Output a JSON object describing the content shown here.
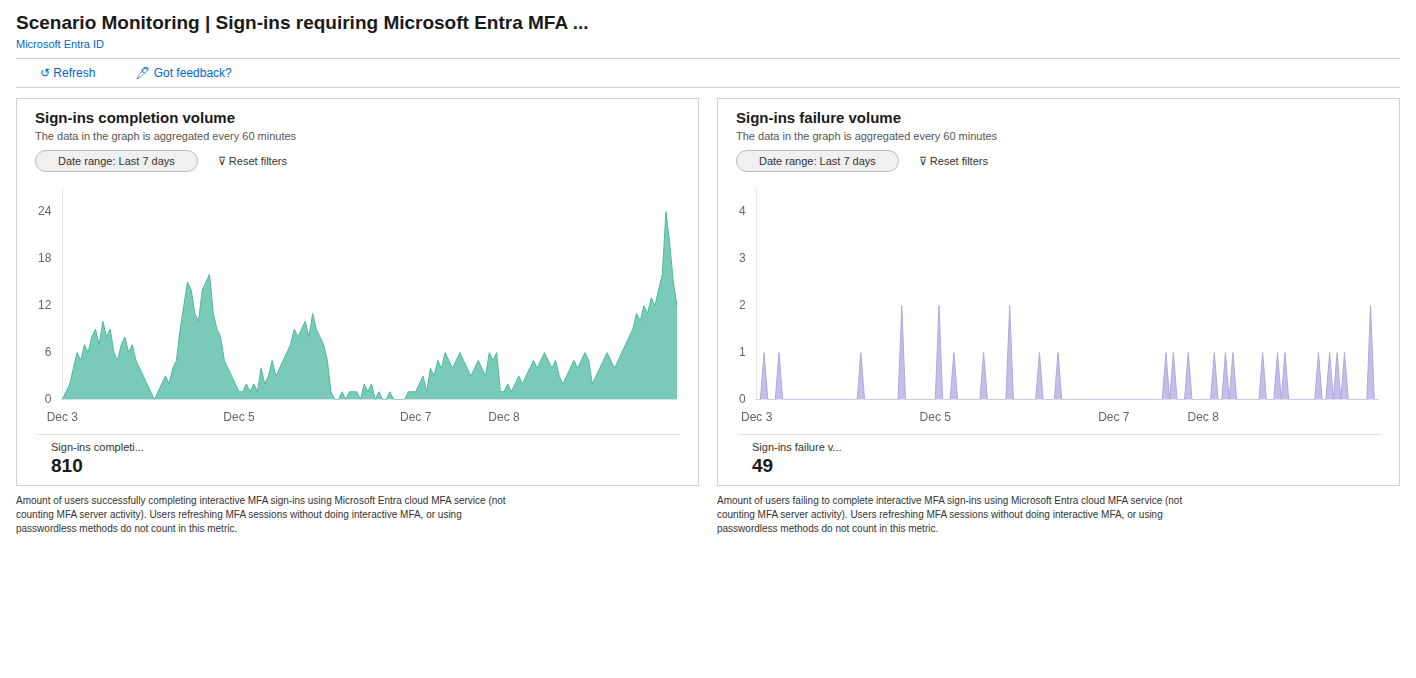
{
  "title": "Scenario Monitoring | Sign-ins requiring Microsoft Entra MFA  ...",
  "subtitle": "Microsoft Entra ID",
  "annotations": [
    "↺  Refresh",
    "🖊  Got feedback?"
  ],
  "chart_data": [
    {
      "type": "area",
      "title": "Sign-ins completion volume",
      "subtitle": "The data in the graph is aggregated every 60 minutes",
      "annotations": [
        "Date range: Last 7 days",
        "⊽  Reset filters",
        "Sign-ins completi...",
        "810",
        "Amount of users successfully completing interactive MFA sign-ins using Microsoft Entra cloud MFA service (not",
        "counting MFA server activity). Users refreshing MFA sessions without doing interactive MFA, or using",
        "passwordless methods do not count in this metric."
      ],
      "color": "#4db8a0",
      "ylim": [
        0,
        27
      ],
      "yticks": [
        0,
        6,
        12,
        18,
        24
      ],
      "grid": false,
      "categories": [
        "Dec 3",
        null,
        null,
        null,
        null,
        null,
        null,
        null,
        null,
        null,
        null,
        null,
        null,
        null,
        null,
        null,
        null,
        null,
        null,
        null,
        null,
        null,
        null,
        null,
        null,
        null,
        null,
        null,
        null,
        null,
        null,
        null,
        null,
        null,
        null,
        null,
        null,
        null,
        null,
        null,
        null,
        null,
        null,
        null,
        null,
        null,
        null,
        null,
        "Dec 5",
        null,
        null,
        null,
        null,
        null,
        null,
        null,
        null,
        null,
        null,
        null,
        null,
        null,
        null,
        null,
        null,
        null,
        null,
        null,
        null,
        null,
        null,
        null,
        null,
        null,
        null,
        null,
        null,
        null,
        null,
        null,
        null,
        null,
        null,
        null,
        null,
        null,
        null,
        null,
        null,
        null,
        null,
        null,
        null,
        null,
        null,
        null,
        "Dec 7",
        null,
        null,
        null,
        null,
        null,
        null,
        null,
        null,
        null,
        null,
        null,
        null,
        null,
        null,
        null,
        null,
        null,
        null,
        null,
        null,
        null,
        null,
        null,
        "Dec 8",
        null,
        null,
        null,
        null,
        null,
        null,
        null,
        null,
        null,
        null,
        null,
        null,
        null,
        null,
        null,
        null,
        null,
        null,
        null,
        null,
        null,
        null,
        null,
        null,
        null,
        null,
        null,
        null,
        null,
        null,
        null,
        null,
        null,
        null,
        null,
        null,
        null,
        null,
        null,
        null,
        null,
        null,
        null,
        null,
        null,
        null,
        null
      ],
      "values": [
        0,
        1,
        2,
        4,
        6,
        5,
        7,
        6,
        8,
        9,
        7,
        10,
        8,
        9,
        6,
        5,
        7,
        8,
        6,
        7,
        5,
        4,
        3,
        2,
        1,
        0,
        1,
        2,
        3,
        2,
        4,
        5,
        9,
        12,
        15,
        14,
        11,
        10,
        14,
        15,
        16,
        11,
        9,
        8,
        5,
        4,
        3,
        2,
        1,
        1,
        2,
        1,
        2,
        1,
        4,
        2,
        3,
        5,
        3,
        4,
        5,
        6,
        7,
        9,
        8,
        9,
        10,
        8,
        11,
        9,
        8,
        7,
        5,
        1,
        0,
        0,
        1,
        0,
        1,
        1,
        1,
        0,
        2,
        1,
        2,
        0,
        1,
        0,
        0,
        1,
        0,
        0,
        0,
        0,
        1,
        1,
        1,
        2,
        3,
        1,
        4,
        3,
        5,
        4,
        6,
        5,
        4,
        5,
        6,
        5,
        4,
        3,
        4,
        5,
        4,
        3,
        6,
        5,
        6,
        1,
        1,
        2,
        1,
        2,
        3,
        2,
        3,
        4,
        5,
        4,
        5,
        6,
        5,
        4,
        5,
        3,
        2,
        3,
        4,
        5,
        4,
        5,
        6,
        5,
        2,
        3,
        4,
        5,
        6,
        5,
        4,
        5,
        6,
        7,
        8,
        9,
        11,
        10,
        12,
        11,
        13,
        12,
        14,
        16,
        24,
        20,
        15,
        12
      ]
    },
    {
      "type": "area",
      "title": "Sign-ins failure volume",
      "subtitle": "The data in the graph is aggregated every 60 minutes",
      "annotations": [
        "Date range: Last 7 days",
        "⊽  Reset filters",
        "Sign-ins failure v...",
        "49",
        "Amount of users failing to complete interactive MFA sign-ins using Microsoft Entra cloud MFA service (not",
        "counting MFA server activity). Users refreshing MFA sessions without doing interactive MFA, or using",
        "passwordless methods do not count in this metric."
      ],
      "color": "#b0a8e0",
      "ylim": [
        0,
        4.5
      ],
      "yticks": [
        0,
        1,
        2,
        3,
        4
      ],
      "grid": false,
      "categories": [
        "Dec 3",
        null,
        null,
        null,
        null,
        null,
        null,
        null,
        null,
        null,
        null,
        null,
        null,
        null,
        null,
        null,
        null,
        null,
        null,
        null,
        null,
        null,
        null,
        null,
        null,
        null,
        null,
        null,
        null,
        null,
        null,
        null,
        null,
        null,
        null,
        null,
        null,
        null,
        null,
        null,
        null,
        null,
        null,
        null,
        null,
        null,
        null,
        null,
        "Dec 5",
        null,
        null,
        null,
        null,
        null,
        null,
        null,
        null,
        null,
        null,
        null,
        null,
        null,
        null,
        null,
        null,
        null,
        null,
        null,
        null,
        null,
        null,
        null,
        null,
        null,
        null,
        null,
        null,
        null,
        null,
        null,
        null,
        null,
        null,
        null,
        null,
        null,
        null,
        null,
        null,
        null,
        null,
        null,
        null,
        null,
        null,
        null,
        "Dec 7",
        null,
        null,
        null,
        null,
        null,
        null,
        null,
        null,
        null,
        null,
        null,
        null,
        null,
        null,
        null,
        null,
        null,
        null,
        null,
        null,
        null,
        null,
        null,
        "Dec 8",
        null,
        null,
        null,
        null,
        null,
        null,
        null,
        null,
        null,
        null,
        null,
        null,
        null,
        null,
        null,
        null,
        null,
        null,
        null,
        null,
        null,
        null,
        null,
        null,
        null,
        null,
        null,
        null,
        null,
        null,
        null,
        null,
        null,
        null,
        null,
        null,
        null,
        null,
        null,
        null,
        null,
        null,
        null,
        null,
        null,
        null,
        null
      ],
      "values": [
        0,
        0,
        1,
        0,
        0,
        0,
        1,
        0,
        0,
        0,
        0,
        0,
        0,
        0,
        0,
        0,
        0,
        0,
        0,
        0,
        0,
        0,
        0,
        0,
        0,
        0,
        0,
        0,
        1,
        0,
        0,
        0,
        0,
        0,
        0,
        0,
        0,
        0,
        0,
        2,
        0,
        0,
        0,
        0,
        0,
        0,
        0,
        0,
        0,
        2,
        0,
        0,
        0,
        1,
        0,
        0,
        0,
        0,
        0,
        0,
        0,
        1,
        0,
        0,
        0,
        0,
        0,
        0,
        2,
        0,
        0,
        0,
        0,
        0,
        0,
        0,
        1,
        0,
        0,
        0,
        0,
        1,
        0,
        0,
        0,
        0,
        0,
        0,
        0,
        0,
        0,
        0,
        0,
        0,
        0,
        0,
        0,
        0,
        0,
        0,
        0,
        0,
        0,
        0,
        0,
        0,
        0,
        0,
        0,
        0,
        1,
        0,
        1,
        0,
        0,
        0,
        1,
        0,
        0,
        0,
        0,
        0,
        0,
        1,
        0,
        0,
        1,
        0,
        1,
        0,
        0,
        0,
        0,
        0,
        0,
        0,
        1,
        0,
        0,
        0,
        1,
        0,
        1,
        0,
        0,
        0,
        0,
        0,
        0,
        0,
        0,
        1,
        0,
        0,
        1,
        0,
        1,
        0,
        1,
        0,
        0,
        0,
        0,
        0,
        0,
        2,
        0,
        0
      ]
    }
  ]
}
